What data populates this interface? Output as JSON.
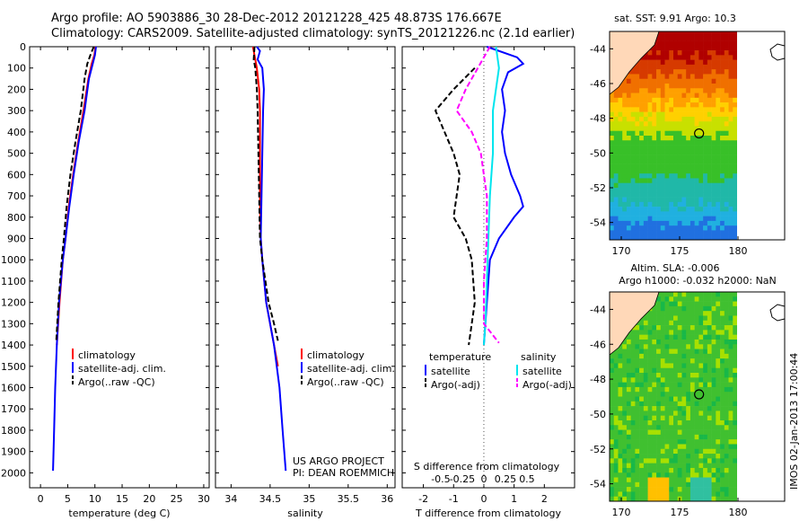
{
  "header": {
    "line1": "Argo profile: AO 5903886_30 28-Dec-2012 20121228_425 48.873S 176.667E",
    "line2": "Climatology: CARS2009. Satellite-adjusted climatology: synTS_20121226.nc (2.1d earlier)"
  },
  "credits": {
    "line1": "US ARGO PROJECT",
    "line2": "PI: DEAN ROEMMICH"
  },
  "timestamp": "IMOS 02-Jan-2013 17:00:44",
  "colors": {
    "climatology": "#ff0000",
    "satellite": "#0000ff",
    "argo": "#000000",
    "sat_salinity": "#00e5ee",
    "argo_salinity": "#ff00ff"
  },
  "chart_data": [
    {
      "type": "line",
      "xlabel": "temperature (deg C)",
      "xlim": [
        -2,
        31
      ],
      "xticks": [
        0,
        5,
        10,
        15,
        20,
        25,
        30
      ],
      "ylim": [
        0,
        2070
      ],
      "yticks": [
        0,
        100,
        200,
        300,
        400,
        500,
        600,
        700,
        800,
        900,
        1000,
        1100,
        1200,
        1300,
        1400,
        1500,
        1600,
        1700,
        1800,
        1900,
        2000
      ],
      "legend": [
        "climatology",
        "satellite-adj. clim.",
        "Argo(..raw -QC)"
      ],
      "series": [
        {
          "name": "climatology",
          "color": "#ff0000",
          "style": "solid",
          "points": [
            [
              10.1,
              0
            ],
            [
              9.9,
              40
            ],
            [
              9.4,
              80
            ],
            [
              8.8,
              150
            ],
            [
              7.9,
              300
            ],
            [
              6.9,
              450
            ],
            [
              6.0,
              600
            ],
            [
              5.2,
              750
            ],
            [
              4.6,
              900
            ],
            [
              4.1,
              1000
            ],
            [
              3.5,
              1200
            ],
            [
              3.0,
              1400
            ]
          ]
        },
        {
          "name": "satellite-adj. clim.",
          "color": "#0000ff",
          "style": "solid",
          "points": [
            [
              10.2,
              0
            ],
            [
              10.0,
              40
            ],
            [
              9.6,
              80
            ],
            [
              8.9,
              150
            ],
            [
              8.1,
              300
            ],
            [
              7.0,
              450
            ],
            [
              6.1,
              600
            ],
            [
              5.3,
              750
            ],
            [
              4.6,
              900
            ],
            [
              4.1,
              1000
            ],
            [
              3.4,
              1200
            ],
            [
              3.0,
              1400
            ],
            [
              2.7,
              1600
            ],
            [
              2.5,
              1800
            ],
            [
              2.3,
              1990
            ]
          ]
        },
        {
          "name": "Argo(..raw -QC)",
          "color": "#000000",
          "style": "dashed",
          "points": [
            [
              9.8,
              0
            ],
            [
              9.3,
              30
            ],
            [
              8.6,
              80
            ],
            [
              8.1,
              150
            ],
            [
              7.4,
              300
            ],
            [
              6.4,
              450
            ],
            [
              5.5,
              600
            ],
            [
              4.8,
              750
            ],
            [
              4.3,
              900
            ],
            [
              3.9,
              1000
            ],
            [
              3.3,
              1200
            ],
            [
              2.9,
              1380
            ]
          ]
        }
      ]
    },
    {
      "type": "line",
      "xlabel": "salinity",
      "xlim": [
        33.8,
        36.1
      ],
      "xticks": [
        34,
        34.5,
        35,
        35.5,
        36
      ],
      "ylim": [
        0,
        2070
      ],
      "legend": [
        "climatology",
        "satellite-adj. clim.",
        "Argo(..raw -QC)"
      ],
      "series": [
        {
          "name": "climatology",
          "color": "#ff0000",
          "style": "solid",
          "points": [
            [
              34.28,
              0
            ],
            [
              34.33,
              100
            ],
            [
              34.36,
              200
            ],
            [
              34.37,
              300
            ],
            [
              34.37,
              500
            ],
            [
              34.37,
              700
            ],
            [
              34.38,
              900
            ],
            [
              34.4,
              1000
            ],
            [
              34.45,
              1200
            ],
            [
              34.55,
              1400
            ],
            [
              34.6,
              1500
            ]
          ]
        },
        {
          "name": "satellite-adj. clim.",
          "color": "#0000ff",
          "style": "solid",
          "points": [
            [
              34.33,
              0
            ],
            [
              34.37,
              20
            ],
            [
              34.34,
              60
            ],
            [
              34.4,
              100
            ],
            [
              34.42,
              200
            ],
            [
              34.41,
              300
            ],
            [
              34.4,
              500
            ],
            [
              34.39,
              700
            ],
            [
              34.38,
              900
            ],
            [
              34.4,
              1000
            ],
            [
              34.45,
              1200
            ],
            [
              34.55,
              1400
            ],
            [
              34.62,
              1600
            ],
            [
              34.66,
              1800
            ],
            [
              34.7,
              1990
            ]
          ]
        },
        {
          "name": "Argo(..raw -QC)",
          "color": "#000000",
          "style": "dashed",
          "points": [
            [
              34.3,
              0
            ],
            [
              34.29,
              60
            ],
            [
              34.31,
              100
            ],
            [
              34.33,
              200
            ],
            [
              34.34,
              300
            ],
            [
              34.35,
              500
            ],
            [
              34.36,
              700
            ],
            [
              34.37,
              900
            ],
            [
              34.4,
              1000
            ],
            [
              34.48,
              1200
            ],
            [
              34.55,
              1300
            ],
            [
              34.6,
              1380
            ]
          ]
        }
      ]
    },
    {
      "type": "line",
      "xlabel": "T difference from climatology",
      "xlabel2": "S difference from climatology",
      "xlim": [
        -2.7,
        3.0
      ],
      "xticks": [
        -2,
        -1,
        0,
        1,
        2
      ],
      "x2ticks": [
        -0.5,
        -0.25,
        0,
        0.25,
        0.5
      ],
      "x2tick_labels": [
        "-0.5",
        "-0.25",
        "0",
        "0.25",
        "0.5"
      ],
      "ylim": [
        0,
        2070
      ],
      "legend_headers": [
        "temperature",
        "salinity"
      ],
      "legend": [
        "satellite",
        "Argo(-adj)",
        "satellite",
        "Argo(-adj)"
      ],
      "series": [
        {
          "name": "satellite",
          "color": "#0000ff",
          "style": "solid",
          "points": [
            [
              0.1,
              0
            ],
            [
              1.1,
              50
            ],
            [
              1.3,
              80
            ],
            [
              0.8,
              120
            ],
            [
              0.6,
              200
            ],
            [
              0.7,
              300
            ],
            [
              0.6,
              400
            ],
            [
              0.7,
              500
            ],
            [
              0.9,
              600
            ],
            [
              1.2,
              700
            ],
            [
              1.3,
              750
            ],
            [
              1.0,
              800
            ],
            [
              0.5,
              900
            ],
            [
              0.2,
              1000
            ],
            [
              0.1,
              1200
            ],
            [
              0.0,
              1400
            ]
          ]
        },
        {
          "name": "Argo(-adj)",
          "color": "#000000",
          "style": "dashed",
          "points": [
            [
              -0.3,
              100
            ],
            [
              -1.0,
              200
            ],
            [
              -1.6,
              300
            ],
            [
              -1.3,
              400
            ],
            [
              -1.0,
              500
            ],
            [
              -0.8,
              600
            ],
            [
              -0.9,
              700
            ],
            [
              -1.0,
              800
            ],
            [
              -0.6,
              900
            ],
            [
              -0.4,
              1000
            ],
            [
              -0.3,
              1200
            ],
            [
              -0.5,
              1400
            ]
          ]
        },
        {
          "name": "satellite",
          "color": "#00e5ee",
          "style": "solid",
          "points": [
            [
              0.4,
              0
            ],
            [
              0.5,
              100
            ],
            [
              0.4,
              200
            ],
            [
              0.3,
              300
            ],
            [
              0.3,
              500
            ],
            [
              0.2,
              700
            ],
            [
              0.15,
              900
            ],
            [
              0.1,
              1100
            ],
            [
              0.05,
              1300
            ],
            [
              0.0,
              1400
            ]
          ]
        },
        {
          "name": "Argo(-adj)",
          "color": "#ff00ff",
          "style": "dashed",
          "points": [
            [
              0.2,
              0
            ],
            [
              -0.2,
              100
            ],
            [
              -0.6,
              200
            ],
            [
              -0.9,
              300
            ],
            [
              -0.4,
              400
            ],
            [
              -0.1,
              500
            ],
            [
              0.1,
              700
            ],
            [
              0.1,
              900
            ],
            [
              0.0,
              1100
            ],
            [
              0.0,
              1300
            ],
            [
              0.5,
              1390
            ]
          ]
        }
      ]
    },
    {
      "type": "heatmap",
      "title": "sat. SST: 9.91  Argo: 10.3",
      "xlim": [
        169,
        184
      ],
      "ylim": [
        -55,
        -43
      ],
      "xticks": [
        170,
        175,
        180
      ],
      "yticks": [
        -44,
        -46,
        -48,
        -50,
        -52,
        -54
      ],
      "argo_position": [
        176.667,
        -48.873
      ]
    },
    {
      "type": "heatmap",
      "title": "Altim. SLA: -0.006",
      "subtitle": "Argo h1000: -0.032  h2000: NaN",
      "xlim": [
        169,
        184
      ],
      "ylim": [
        -55,
        -43
      ],
      "xticks": [
        170,
        175,
        180
      ],
      "yticks": [
        -44,
        -46,
        -48,
        -50,
        -52,
        -54
      ],
      "argo_position": [
        176.667,
        -48.873
      ]
    }
  ]
}
